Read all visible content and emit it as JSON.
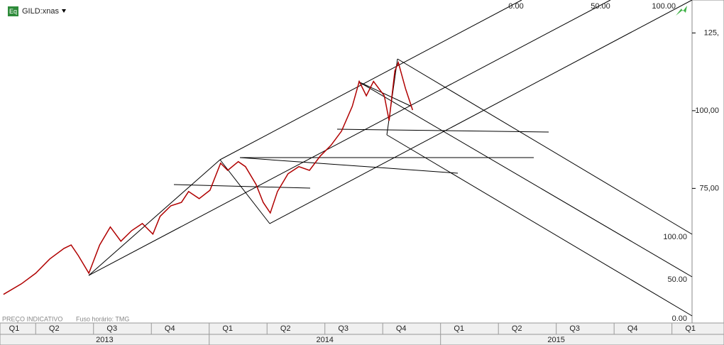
{
  "symbol": "GILD:xnas",
  "icon_label": "Eq",
  "footer": {
    "note": "PREÇO INDICATIVO",
    "timezone": "Fuso horário: TMG"
  },
  "annotations": {
    "top": [
      "0.00",
      "50.00",
      "100.00"
    ],
    "right": [
      "100.00",
      "50.00",
      "0.00"
    ]
  },
  "chart_data": {
    "type": "line",
    "color": "#b00000",
    "x": [
      1.33,
      2.26,
      3.0,
      3.73,
      4.47,
      4.84,
      5.21,
      5.76,
      6.32,
      6.87,
      7.42,
      7.98,
      8.53,
      9.08,
      9.45,
      10.01,
      10.56,
      10.93,
      11.48,
      12.04,
      12.59,
      12.96,
      13.51,
      13.88,
      14.43,
      14.8,
      15.17,
      15.54,
      16.09,
      16.65,
      17.2,
      17.76,
      18.31,
      18.86,
      19.42,
      19.78,
      20.15,
      20.52,
      21.08,
      21.33,
      21.63,
      21.81,
      22.18,
      22.55
    ],
    "values": [
      40.9,
      44.3,
      47.7,
      52.3,
      55.7,
      56.8,
      53.4,
      47.7,
      56.8,
      62.6,
      58,
      61.4,
      63.7,
      60.3,
      66,
      69.4,
      70.5,
      74,
      71.7,
      74.4,
      83.1,
      80.8,
      83.6,
      82,
      76.3,
      70.5,
      67.1,
      74,
      79.7,
      82,
      80.8,
      85.4,
      88.8,
      93.4,
      101.4,
      109.4,
      104.8,
      109.4,
      104.8,
      96.8,
      112.8,
      115.5,
      107.1,
      100.2
    ],
    "xlim": [
      1.15,
      38.7
    ],
    "xticks": [
      3,
      6,
      9,
      12,
      15,
      18,
      21,
      24,
      27,
      30,
      33,
      36
    ],
    "quarter_labels": [
      "Q1",
      "Q2",
      "Q3",
      "Q4",
      "Q1",
      "Q2",
      "Q3",
      "Q4",
      "Q1",
      "Q2",
      "Q3",
      "Q4",
      "Q1"
    ],
    "years": [
      "2013",
      "2014",
      "2015"
    ],
    "ylim": [
      31.7,
      135.6
    ],
    "yticks": [
      {
        "value": 125,
        "label": "125,"
      },
      {
        "value": 100,
        "label": "100,00"
      },
      {
        "value": 75,
        "label": "75,00"
      }
    ]
  }
}
